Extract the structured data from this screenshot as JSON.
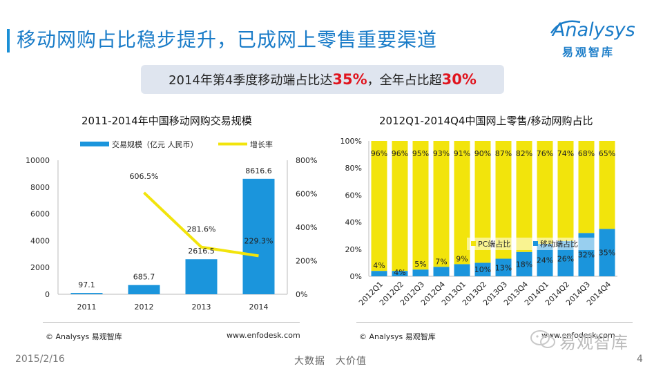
{
  "slide": {
    "title": "移动网购占比稳步提升，已成网上零售重要渠道",
    "highlight": {
      "prefix": "2014年第4季度移动端占比达",
      "pct1": "35%",
      "middle": "，全年占比超",
      "pct2": "30%"
    },
    "date": "2015/2/16",
    "slogan": "大数据　大价值",
    "page": "4"
  },
  "logo": {
    "word": "Analysys",
    "cn": "易观智库"
  },
  "wechat": {
    "text": "易观智库"
  },
  "left_source": "© Analysys 易观智库",
  "left_url": "www.enfodesk.com",
  "right_source": "© Analysys 易观智库",
  "right_url": "www.enfodesk.com",
  "watermark": "易观智库",
  "colors": {
    "accent": "#1a7cc8",
    "bar_blue": "#1b95dc",
    "line_yellow": "#f2e40c",
    "red": "#e0141e"
  },
  "chart_data": [
    {
      "type": "bar",
      "title": "2011-2014年中国移动网购交易规模",
      "categories": [
        "2011",
        "2012",
        "2013",
        "2014"
      ],
      "series": [
        {
          "name": "交易规模（亿元 人民币）",
          "kind": "bar",
          "axis": "left",
          "values": [
            97.1,
            685.7,
            2616.5,
            8616.6
          ],
          "labels": [
            "97.1",
            "685.7",
            "2616.5",
            "8616.6"
          ]
        },
        {
          "name": "增长率",
          "kind": "line",
          "axis": "right",
          "values": [
            null,
            606.5,
            281.6,
            229.3
          ],
          "labels": [
            "",
            "606.5%",
            "281.6%",
            "229.3%"
          ]
        }
      ],
      "ylim": [
        0,
        10000
      ],
      "yticks": [
        "0",
        "2000",
        "4000",
        "6000",
        "8000",
        "10000"
      ],
      "y2lim": [
        0,
        800
      ],
      "y2ticks": [
        "0%",
        "200%",
        "400%",
        "600%",
        "800%"
      ],
      "legend": "top"
    },
    {
      "type": "bar",
      "stacked": true,
      "title": "2012Q1-2014Q4中国网上零售/移动网购占比",
      "categories": [
        "2012Q1",
        "2012Q2",
        "2012Q3",
        "2012Q4",
        "2013Q1",
        "2013Q2",
        "2013Q3",
        "2013Q4",
        "2014Q1",
        "2014Q2",
        "2014Q3",
        "2014Q4"
      ],
      "series": [
        {
          "name": "移动端占比",
          "values": [
            4,
            4,
            5,
            7,
            9,
            10,
            13,
            18,
            24,
            26,
            32,
            35
          ],
          "labels": [
            "4%",
            "4%",
            "5%",
            "7%",
            "9%",
            "10%",
            "13%",
            "18%",
            "24%",
            "26%",
            "32%",
            "35%"
          ]
        },
        {
          "name": "PC端占比",
          "values": [
            96,
            96,
            95,
            93,
            91,
            90,
            87,
            82,
            76,
            74,
            68,
            65
          ],
          "labels": [
            "96%",
            "96%",
            "95%",
            "93%",
            "91%",
            "90%",
            "87%",
            "82%",
            "76%",
            "74%",
            "68%",
            "65%"
          ]
        }
      ],
      "ylim": [
        0,
        100
      ],
      "yticks": [
        "0%",
        "20%",
        "40%",
        "60%",
        "80%",
        "100%"
      ],
      "legend": "inside-center"
    }
  ]
}
